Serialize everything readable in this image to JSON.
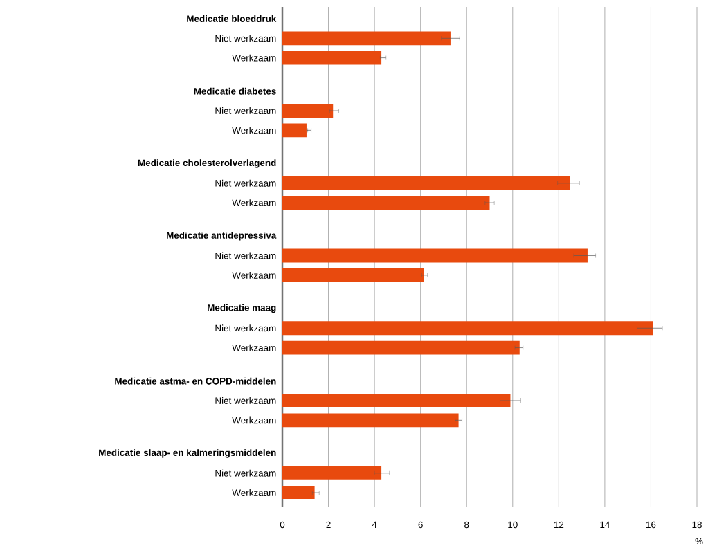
{
  "chart_data": {
    "type": "bar",
    "orientation": "horizontal",
    "xlabel": "%",
    "color": "#e84a0e",
    "grid": "x",
    "categories": [
      "Medicatie bloeddruk",
      "Niet werkzaam",
      "Werkzaam",
      "Medicatie diabetes",
      "Niet werkzaam",
      "Werkzaam",
      "Medicatie cholesterolverlagend",
      "Niet werkzaam",
      "Werkzaam",
      "Medicatie antidepressiva",
      "Niet werkzaam",
      "Werkzaam",
      "Medicatie maag",
      "Niet werkzaam",
      "Werkzaam",
      "Medicatie astma- en COPD-middelen",
      "Niet werkzaam",
      "Werkzaam",
      "Medicatie slaap- en kalmeringsmiddelen",
      "Niet werkzaam",
      "Werkzaam"
    ],
    "values": [
      null,
      7.3,
      4.3,
      null,
      2.2,
      1.05,
      null,
      12.5,
      9.0,
      null,
      13.25,
      6.15,
      null,
      16.1,
      10.3,
      null,
      9.9,
      7.65,
      null,
      4.3,
      1.4
    ],
    "errors": [
      null,
      [
        6.9,
        7.7
      ],
      [
        4.25,
        4.5
      ],
      null,
      [
        2.05,
        2.45
      ],
      [
        1.1,
        1.25
      ],
      null,
      [
        11.95,
        12.9
      ],
      [
        8.8,
        9.2
      ],
      null,
      [
        12.65,
        13.6
      ],
      [
        6.05,
        6.3
      ],
      null,
      [
        15.4,
        16.5
      ],
      [
        10.1,
        10.45
      ],
      null,
      [
        9.45,
        10.35
      ],
      [
        7.5,
        7.8
      ],
      null,
      [
        4.0,
        4.65
      ],
      [
        1.3,
        1.6
      ]
    ],
    "xlim": [
      0,
      18
    ],
    "xticks": [
      0,
      2,
      4,
      6,
      8,
      10,
      12,
      14,
      16,
      18
    ]
  }
}
